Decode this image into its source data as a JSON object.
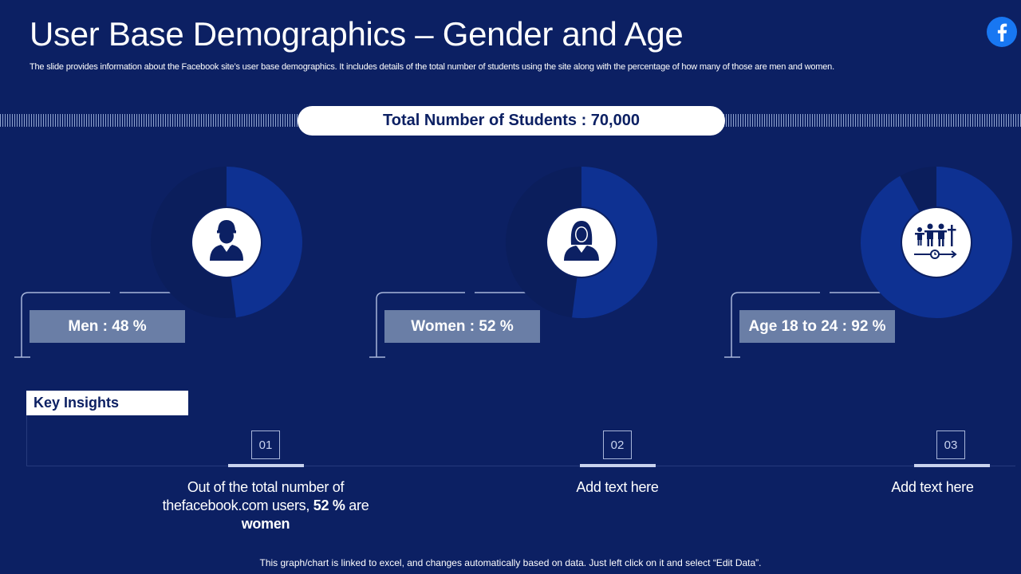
{
  "header": {
    "title": "User Base Demographics – Gender and Age",
    "subtitle": "The slide provides information about the Facebook site’s user base demographics. It includes details of the total number of students using the site along with the percentage of how many of those are men and women."
  },
  "brand_icon": "facebook-logo-icon",
  "total_label": "Total Number  of Students : 70,000",
  "colors": {
    "background": "#0c2063",
    "donut_fill": "#0e3192",
    "donut_track": "#0b1e5c",
    "label_box": "#6a7ea6"
  },
  "stats": [
    {
      "label": "Men : 48 %",
      "percent": 48,
      "icon": "male-user-icon"
    },
    {
      "label": "Women : 52 %",
      "percent": 52,
      "icon": "female-user-icon"
    },
    {
      "label": "Age 18 to 24 : 92 %",
      "percent": 92,
      "icon": "age-group-timeline-icon"
    }
  ],
  "key_insights": {
    "label": "Key Insights",
    "items": [
      {
        "number": "01",
        "text_parts": [
          "Out of the total number of thefacebook.com users, ",
          "52 %",
          " are ",
          "women"
        ]
      },
      {
        "number": "02",
        "text": "Add text here"
      },
      {
        "number": "03",
        "text": "Add text here"
      }
    ]
  },
  "footnote": "This graph/chart is linked to excel, and changes automatically based on data. Just left click on it and select “Edit Data”."
}
